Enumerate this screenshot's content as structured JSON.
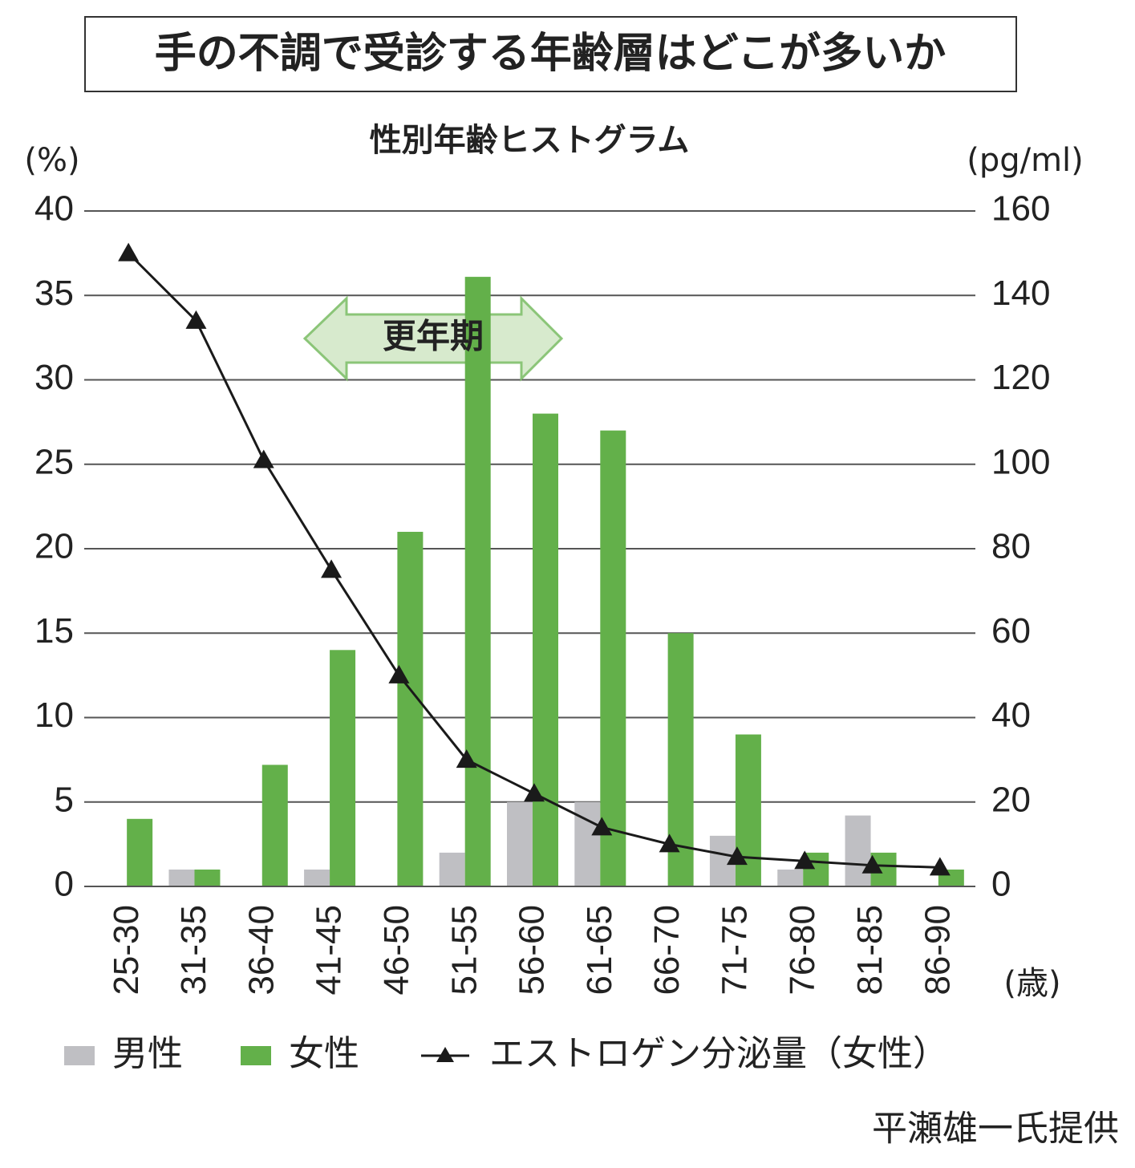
{
  "chart_data": {
    "type": "bar",
    "title": "手の不調で受診する年齢層はどこが多いか",
    "subtitle": "性別年齢ヒストグラム",
    "y_label": "(%)",
    "y2_label": "(pg/ml)",
    "x_label": "(歳)",
    "annotation": "更年期",
    "source": "平瀬雄一氏提供",
    "categories": [
      "25-30",
      "31-35",
      "36-40",
      "41-45",
      "46-50",
      "51-55",
      "56-60",
      "61-65",
      "66-70",
      "71-75",
      "76-80",
      "81-85",
      "86-90"
    ],
    "series": [
      {
        "name": "男性",
        "type": "bar",
        "color": "#bfbfc3",
        "values": [
          0,
          1,
          0,
          1,
          0,
          2,
          5,
          5,
          0,
          3,
          1,
          4.2,
          0
        ]
      },
      {
        "name": "女性",
        "type": "bar",
        "color": "#63b04a",
        "values": [
          4,
          1,
          7.2,
          14,
          21,
          36.1,
          28,
          27,
          15,
          9,
          2,
          2,
          1
        ]
      },
      {
        "name": "エストロゲン分泌量（女性）",
        "type": "line",
        "axis": "y2",
        "color": "#1a1a1a",
        "values": [
          150,
          134,
          101,
          75,
          50,
          30,
          22,
          14,
          10,
          7,
          6,
          5,
          4.5
        ]
      }
    ],
    "ylim": [
      0,
      40
    ],
    "yticks": [
      0,
      5,
      10,
      15,
      20,
      25,
      30,
      35,
      40
    ],
    "y2lim": [
      0,
      160
    ],
    "y2ticks": [
      0,
      20,
      40,
      60,
      80,
      100,
      120,
      140,
      160
    ],
    "grid": true
  }
}
